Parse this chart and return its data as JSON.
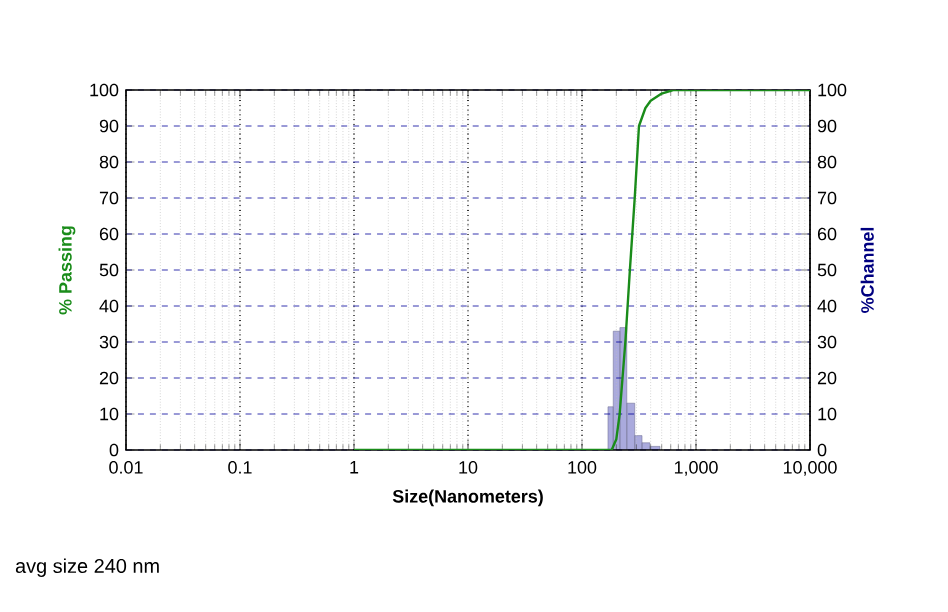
{
  "chart_data": {
    "type": "line",
    "xlabel": "Size(Nanometers)",
    "ylabel": "% Passing",
    "y2label": "%Channel",
    "log": "x",
    "grid": true,
    "xlim": [
      0.01,
      10000
    ],
    "xticks": [
      0.01,
      0.1,
      1,
      10,
      100,
      {
        "value": 1000,
        "label": "1,000"
      },
      {
        "value": 10000,
        "label": "10,000"
      }
    ],
    "ylim": [
      0,
      100
    ],
    "yticks": [
      0,
      10,
      20,
      30,
      40,
      50,
      60,
      70,
      80,
      90,
      100
    ],
    "y2lim": [
      0,
      100
    ],
    "y2ticks": [
      0,
      10,
      20,
      30,
      40,
      50,
      60,
      70,
      80,
      90,
      100
    ],
    "series": [
      {
        "color": "#1a8c1a",
        "x": [
          1,
          182,
          200,
          214,
          240,
          263,
          290,
          316,
          360,
          400,
          500,
          630,
          1000,
          10000
        ],
        "values": [
          0,
          0,
          3,
          10,
          30,
          50,
          70,
          90,
          95,
          97,
          99,
          100,
          100,
          100
        ]
      },
      {
        "type": "histogram",
        "axis": "y2",
        "color": "#aaaadd",
        "bins": [
          169,
          188,
          215,
          247,
          290,
          336,
          394,
          483
        ],
        "values": [
          12,
          33,
          34,
          13,
          4,
          2,
          1
        ]
      }
    ],
    "annotations": [
      "avg size 240 nm"
    ]
  }
}
